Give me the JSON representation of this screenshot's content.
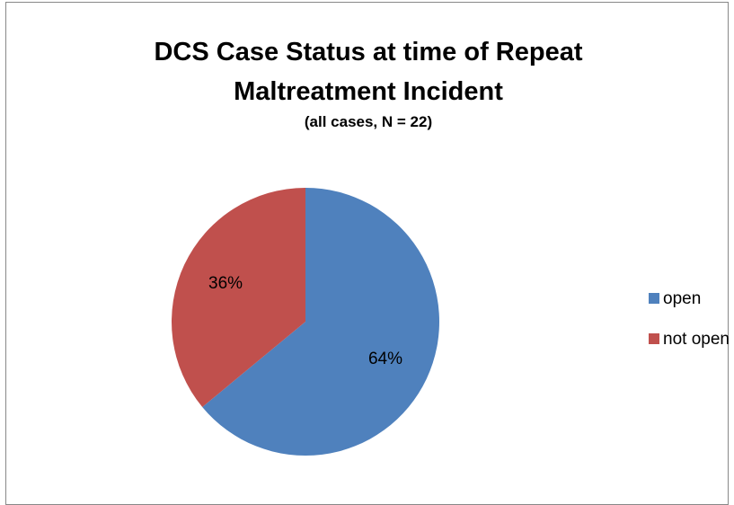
{
  "chart_data": {
    "type": "pie",
    "title": "DCS Case Status at time of Repeat Maltreatment Incident",
    "subtitle": "(all cases, N = 22)",
    "categories": [
      "open",
      "not open"
    ],
    "values": [
      64,
      36
    ],
    "value_labels": [
      "64%",
      "36%"
    ],
    "colors": [
      "#4f81bd",
      "#c0504d"
    ]
  }
}
